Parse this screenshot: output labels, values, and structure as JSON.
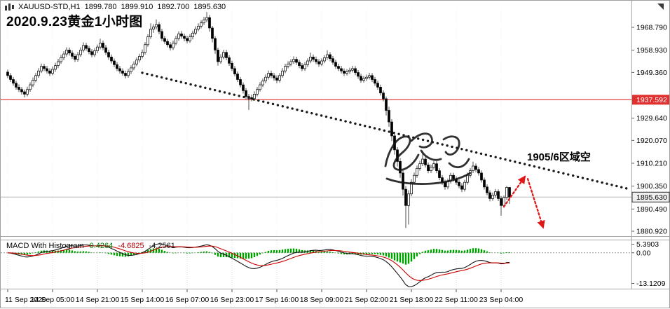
{
  "header": {
    "symbol_period": "XAUUSD-STD,H1",
    "quote": [
      "1899.780",
      "1899.910",
      "1892.700",
      "1895.630"
    ],
    "title": "2020.9.23黄金1小时图"
  },
  "price_axis": {
    "ticks": [
      {
        "label": "1968.790",
        "value": 1968.79
      },
      {
        "label": "1958.930",
        "value": 1958.93
      },
      {
        "label": "1949.360",
        "value": 1949.36
      },
      {
        "label": "1929.640",
        "value": 1929.64
      },
      {
        "label": "1920.070",
        "value": 1920.07
      },
      {
        "label": "1910.210",
        "value": 1910.21
      },
      {
        "label": "1900.350",
        "value": 1900.35
      },
      {
        "label": "1890.490",
        "value": 1890.49
      },
      {
        "label": "1880.920",
        "value": 1880.92
      }
    ],
    "red_level": {
      "label": "1937.592",
      "value": 1937.592
    },
    "current": {
      "label": "1895.630",
      "value": 1895.63
    }
  },
  "macd": {
    "name": "MACD With Histogram",
    "values": [
      {
        "text": "0.4264",
        "color": "#008000"
      },
      {
        "text": "-4.6825",
        "color": "#b00000"
      },
      {
        "text": "-4.2561",
        "color": "#1a1a1a"
      }
    ],
    "axis_labels": [
      "5.3903",
      "0.00",
      "-13.1209"
    ],
    "params": {
      "fast": 12,
      "slow": 26,
      "signal": 9
    }
  },
  "annotations": {
    "zone_short": {
      "text": "1905/6区域空"
    },
    "trendline": {
      "from": {
        "bar": 48,
        "price": 1949.2
      },
      "to": {
        "bar": 221,
        "price": 1899.3
      }
    },
    "arrow_up": {
      "from": {
        "bar": 177,
        "price": 1891.5
      },
      "to": {
        "bar": 184.5,
        "price": 1904.5
      }
    },
    "arrow_down": {
      "from": {
        "bar": 185.5,
        "price": 1903.5
      },
      "to": {
        "bar": 191,
        "price": 1882.5
      }
    }
  },
  "colors": {
    "bull": "#ffffff",
    "bear": "#000000",
    "wick": "#000000",
    "red_line": "#e03030",
    "current_line": "#b8b8b8",
    "trend": "#1a1a1a",
    "arrow": "#e01818",
    "hist": "#00a000",
    "macd_line": "#151515",
    "signal_line": "#cc0000",
    "grid": "#d8d8d8"
  },
  "chart_data": {
    "type": "candlestick",
    "symbol": "XAUUSD-STD",
    "timeframe": "H1",
    "title": "2020.9.23黄金1小时图",
    "y_axis_range": [
      1878.9,
      1977.8
    ],
    "levels": {
      "resistance_red_line": 1937.592,
      "current_bid": 1895.63,
      "short_zone": "1905/6"
    },
    "time_ticks": [
      {
        "label": "11 Sep 2020",
        "bar": 0
      },
      {
        "label": "14 Sep 05:00",
        "bar": 16
      },
      {
        "label": "14 Sep 21:00",
        "bar": 32
      },
      {
        "label": "15 Sep 14:00",
        "bar": 48
      },
      {
        "label": "16 Sep 07:00",
        "bar": 64
      },
      {
        "label": "16 Sep 23:00",
        "bar": 80
      },
      {
        "label": "17 Sep 16:00",
        "bar": 96
      },
      {
        "label": "18 Sep 09:00",
        "bar": 112
      },
      {
        "label": "21 Sep 02:00",
        "bar": 128
      },
      {
        "label": "21 Sep 18:00",
        "bar": 144
      },
      {
        "label": "22 Sep 11:00",
        "bar": 160
      },
      {
        "label": "23 Sep 04:00",
        "bar": 176
      }
    ],
    "ohlc": [
      [
        1949.5,
        1950.6,
        1946.9,
        1948.0
      ],
      [
        1948.0,
        1949.1,
        1945.2,
        1946.3
      ],
      [
        1946.3,
        1947.4,
        1943.6,
        1944.7
      ],
      [
        1944.7,
        1945.8,
        1941.9,
        1943.0
      ],
      [
        1943.0,
        1944.2,
        1940.9,
        1942.0
      ],
      [
        1942.0,
        1943.1,
        1939.8,
        1941.0
      ],
      [
        1941.0,
        1942.0,
        1938.6,
        1940.0
      ],
      [
        1940.0,
        1943.2,
        1939.0,
        1942.0
      ],
      [
        1942.0,
        1945.1,
        1941.0,
        1944.0
      ],
      [
        1944.0,
        1947.2,
        1943.0,
        1946.0
      ],
      [
        1946.0,
        1949.1,
        1945.1,
        1948.0
      ],
      [
        1948.0,
        1951.2,
        1947.0,
        1950.0
      ],
      [
        1950.0,
        1953.2,
        1949.1,
        1952.0
      ],
      [
        1952.0,
        1953.1,
        1949.9,
        1951.0
      ],
      [
        1951.0,
        1952.2,
        1948.9,
        1950.0
      ],
      [
        1950.0,
        1951.1,
        1947.8,
        1949.0
      ],
      [
        1949.0,
        1951.9,
        1948.1,
        1950.7
      ],
      [
        1950.7,
        1953.5,
        1949.6,
        1952.3
      ],
      [
        1952.3,
        1955.2,
        1951.2,
        1954.0
      ],
      [
        1954.0,
        1956.9,
        1953.0,
        1955.7
      ],
      [
        1955.7,
        1958.5,
        1954.6,
        1957.3
      ],
      [
        1957.3,
        1960.2,
        1956.2,
        1959.0
      ],
      [
        1959.0,
        1960.1,
        1956.6,
        1957.7
      ],
      [
        1957.7,
        1958.9,
        1955.2,
        1956.3
      ],
      [
        1956.3,
        1957.4,
        1953.9,
        1955.0
      ],
      [
        1955.0,
        1958.2,
        1954.0,
        1957.0
      ],
      [
        1957.0,
        1960.2,
        1956.1,
        1959.0
      ],
      [
        1959.0,
        1962.3,
        1958.0,
        1961.0
      ],
      [
        1961.0,
        1962.1,
        1958.7,
        1959.7
      ],
      [
        1959.7,
        1960.8,
        1957.2,
        1958.3
      ],
      [
        1958.3,
        1959.4,
        1955.9,
        1957.0
      ],
      [
        1957.0,
        1959.8,
        1956.0,
        1958.7
      ],
      [
        1958.7,
        1961.4,
        1957.6,
        1960.3
      ],
      [
        1960.3,
        1963.9,
        1959.3,
        1962.0
      ],
      [
        1962.0,
        1963.1,
        1958.9,
        1960.0
      ],
      [
        1960.0,
        1961.2,
        1956.9,
        1958.0
      ],
      [
        1958.0,
        1959.1,
        1954.8,
        1956.0
      ],
      [
        1956.0,
        1957.1,
        1953.2,
        1954.3
      ],
      [
        1954.3,
        1955.4,
        1951.6,
        1952.7
      ],
      [
        1952.7,
        1953.8,
        1949.9,
        1951.0
      ],
      [
        1951.0,
        1952.2,
        1948.9,
        1950.0
      ],
      [
        1950.0,
        1951.1,
        1947.9,
        1949.0
      ],
      [
        1949.0,
        1950.1,
        1946.8,
        1948.0
      ],
      [
        1948.0,
        1950.9,
        1947.1,
        1949.7
      ],
      [
        1949.7,
        1952.4,
        1948.6,
        1951.3
      ],
      [
        1951.3,
        1954.2,
        1950.3,
        1953.0
      ],
      [
        1953.0,
        1955.8,
        1952.0,
        1954.7
      ],
      [
        1954.7,
        1957.4,
        1953.6,
        1956.3
      ],
      [
        1956.3,
        1959.2,
        1955.3,
        1958.0
      ],
      [
        1958.0,
        1962.4,
        1957.1,
        1961.3
      ],
      [
        1961.3,
        1965.8,
        1960.4,
        1964.7
      ],
      [
        1964.7,
        1970.5,
        1963.8,
        1968.0
      ],
      [
        1968.0,
        1970.2,
        1966.4,
        1969.0
      ],
      [
        1969.0,
        1972.2,
        1967.9,
        1970.0
      ],
      [
        1970.0,
        1971.1,
        1965.8,
        1967.0
      ],
      [
        1967.0,
        1968.2,
        1962.9,
        1964.0
      ],
      [
        1964.0,
        1965.1,
        1961.6,
        1962.7
      ],
      [
        1962.7,
        1963.8,
        1960.2,
        1961.3
      ],
      [
        1961.3,
        1962.4,
        1958.8,
        1960.0
      ],
      [
        1960.0,
        1963.1,
        1959.0,
        1962.0
      ],
      [
        1962.0,
        1965.2,
        1961.1,
        1964.0
      ],
      [
        1964.0,
        1967.1,
        1963.0,
        1966.0
      ],
      [
        1966.0,
        1967.2,
        1963.9,
        1965.0
      ],
      [
        1965.0,
        1966.1,
        1962.8,
        1964.0
      ],
      [
        1964.0,
        1965.2,
        1961.9,
        1963.0
      ],
      [
        1963.0,
        1965.9,
        1962.1,
        1964.7
      ],
      [
        1964.7,
        1967.4,
        1963.6,
        1966.3
      ],
      [
        1966.3,
        1969.2,
        1965.4,
        1968.0
      ],
      [
        1968.0,
        1970.5,
        1967.1,
        1969.3
      ],
      [
        1969.3,
        1971.9,
        1968.3,
        1970.7
      ],
      [
        1970.7,
        1973.3,
        1969.8,
        1972.0
      ],
      [
        1972.0,
        1975.4,
        1971.0,
        1973.0
      ],
      [
        1973.0,
        1974.1,
        1966.9,
        1968.5
      ],
      [
        1968.5,
        1969.4,
        1962.3,
        1964.0
      ],
      [
        1964.0,
        1965.0,
        1957.4,
        1959.0
      ],
      [
        1959.0,
        1960.0,
        1952.3,
        1954.0
      ],
      [
        1954.0,
        1957.2,
        1953.1,
        1956.0
      ],
      [
        1956.0,
        1959.1,
        1955.0,
        1958.0
      ],
      [
        1958.0,
        1959.1,
        1954.6,
        1955.7
      ],
      [
        1955.7,
        1956.8,
        1952.2,
        1953.3
      ],
      [
        1953.3,
        1954.4,
        1949.9,
        1951.0
      ],
      [
        1951.0,
        1952.1,
        1947.6,
        1948.7
      ],
      [
        1948.7,
        1949.8,
        1945.2,
        1946.3
      ],
      [
        1946.3,
        1947.4,
        1942.9,
        1944.0
      ],
      [
        1944.0,
        1945.1,
        1940.3,
        1941.5
      ],
      [
        1941.5,
        1942.6,
        1937.8,
        1939.0
      ],
      [
        1939.0,
        1940.1,
        1933.2,
        1938.5
      ],
      [
        1938.5,
        1939.8,
        1936.9,
        1938.0
      ],
      [
        1938.0,
        1941.2,
        1937.1,
        1940.0
      ],
      [
        1940.0,
        1943.1,
        1939.0,
        1942.0
      ],
      [
        1942.0,
        1945.2,
        1941.1,
        1944.0
      ],
      [
        1944.0,
        1946.8,
        1943.0,
        1945.7
      ],
      [
        1945.7,
        1948.5,
        1944.7,
        1947.3
      ],
      [
        1947.3,
        1950.2,
        1946.3,
        1949.0
      ],
      [
        1949.0,
        1950.1,
        1946.9,
        1948.0
      ],
      [
        1948.0,
        1949.2,
        1945.8,
        1947.0
      ],
      [
        1947.0,
        1948.1,
        1944.7,
        1946.0
      ],
      [
        1946.0,
        1949.1,
        1945.0,
        1948.0
      ],
      [
        1948.0,
        1951.2,
        1947.1,
        1950.0
      ],
      [
        1950.0,
        1953.1,
        1949.0,
        1952.0
      ],
      [
        1952.0,
        1954.2,
        1951.1,
        1953.0
      ],
      [
        1953.0,
        1955.1,
        1952.0,
        1954.0
      ],
      [
        1954.0,
        1956.3,
        1953.1,
        1955.0
      ],
      [
        1955.0,
        1956.1,
        1952.6,
        1953.7
      ],
      [
        1953.7,
        1954.8,
        1951.2,
        1952.3
      ],
      [
        1952.3,
        1953.4,
        1949.9,
        1951.0
      ],
      [
        1951.0,
        1953.8,
        1950.0,
        1952.7
      ],
      [
        1952.7,
        1955.4,
        1951.7,
        1954.3
      ],
      [
        1954.3,
        1957.9,
        1953.3,
        1956.0
      ],
      [
        1956.0,
        1957.1,
        1953.9,
        1955.0
      ],
      [
        1955.0,
        1956.2,
        1952.9,
        1954.0
      ],
      [
        1954.0,
        1955.1,
        1951.8,
        1953.0
      ],
      [
        1953.0,
        1955.4,
        1952.1,
        1954.3
      ],
      [
        1954.3,
        1956.8,
        1953.3,
        1955.7
      ],
      [
        1955.7,
        1958.9,
        1954.7,
        1957.0
      ],
      [
        1957.0,
        1958.1,
        1954.2,
        1955.3
      ],
      [
        1955.3,
        1956.4,
        1952.6,
        1953.7
      ],
      [
        1953.7,
        1954.8,
        1950.9,
        1952.0
      ],
      [
        1952.0,
        1953.1,
        1949.9,
        1951.0
      ],
      [
        1951.0,
        1952.2,
        1948.9,
        1950.0
      ],
      [
        1950.0,
        1951.1,
        1947.8,
        1949.0
      ],
      [
        1949.0,
        1950.8,
        1948.0,
        1949.7
      ],
      [
        1949.7,
        1951.4,
        1948.7,
        1950.3
      ],
      [
        1950.3,
        1952.2,
        1949.3,
        1951.0
      ],
      [
        1951.0,
        1952.1,
        1948.2,
        1949.3
      ],
      [
        1949.3,
        1950.4,
        1946.6,
        1947.7
      ],
      [
        1947.7,
        1948.8,
        1944.9,
        1946.0
      ],
      [
        1946.0,
        1947.8,
        1945.0,
        1946.7
      ],
      [
        1946.7,
        1948.4,
        1945.7,
        1947.3
      ],
      [
        1947.3,
        1949.2,
        1946.3,
        1948.0
      ],
      [
        1948.0,
        1949.1,
        1945.2,
        1946.3
      ],
      [
        1946.3,
        1947.4,
        1943.6,
        1944.7
      ],
      [
        1944.7,
        1945.8,
        1941.9,
        1943.0
      ],
      [
        1943.0,
        1944.1,
        1939.4,
        1940.5
      ],
      [
        1940.5,
        1941.6,
        1936.9,
        1938.0
      ],
      [
        1938.0,
        1939.0,
        1930.8,
        1933.0
      ],
      [
        1933.0,
        1934.6,
        1925.9,
        1928.0
      ],
      [
        1928.0,
        1929.2,
        1919.8,
        1922.0
      ],
      [
        1922.0,
        1923.4,
        1913.9,
        1916.0
      ],
      [
        1916.0,
        1917.2,
        1908.8,
        1911.0
      ],
      [
        1911.0,
        1912.4,
        1903.9,
        1906.0
      ],
      [
        1906.0,
        1907.2,
        1896.3,
        1899.0
      ],
      [
        1899.0,
        1900.4,
        1882.3,
        1892.0
      ],
      [
        1892.0,
        1898.6,
        1883.8,
        1897.0
      ],
      [
        1897.0,
        1903.3,
        1896.0,
        1902.0
      ],
      [
        1902.0,
        1906.2,
        1901.0,
        1905.0
      ],
      [
        1905.0,
        1909.2,
        1904.0,
        1908.0
      ],
      [
        1908.0,
        1911.3,
        1907.0,
        1910.0
      ],
      [
        1910.0,
        1915.6,
        1909.0,
        1912.0
      ],
      [
        1912.0,
        1913.1,
        1908.4,
        1909.5
      ],
      [
        1909.5,
        1910.6,
        1905.9,
        1907.0
      ],
      [
        1907.0,
        1909.6,
        1906.0,
        1908.5
      ],
      [
        1908.5,
        1911.2,
        1907.5,
        1910.0
      ],
      [
        1910.0,
        1911.1,
        1905.9,
        1907.0
      ],
      [
        1907.0,
        1908.1,
        1902.9,
        1904.0
      ],
      [
        1904.0,
        1905.1,
        1900.9,
        1902.0
      ],
      [
        1902.0,
        1903.1,
        1898.8,
        1900.0
      ],
      [
        1900.0,
        1903.6,
        1899.0,
        1902.5
      ],
      [
        1902.5,
        1906.1,
        1901.5,
        1905.0
      ],
      [
        1905.0,
        1906.1,
        1902.4,
        1903.5
      ],
      [
        1903.5,
        1904.6,
        1900.9,
        1902.0
      ],
      [
        1902.0,
        1903.1,
        1899.4,
        1900.5
      ],
      [
        1900.5,
        1901.6,
        1897.8,
        1899.0
      ],
      [
        1899.0,
        1903.1,
        1898.0,
        1902.0
      ],
      [
        1902.0,
        1906.2,
        1901.0,
        1905.0
      ],
      [
        1905.0,
        1908.1,
        1904.0,
        1907.0
      ],
      [
        1907.0,
        1910.9,
        1906.0,
        1909.0
      ],
      [
        1909.0,
        1910.1,
        1906.4,
        1907.5
      ],
      [
        1907.5,
        1908.6,
        1904.9,
        1906.0
      ],
      [
        1906.0,
        1907.1,
        1901.9,
        1903.0
      ],
      [
        1903.0,
        1904.1,
        1898.9,
        1900.0
      ],
      [
        1900.0,
        1901.1,
        1896.4,
        1897.5
      ],
      [
        1897.5,
        1898.6,
        1893.8,
        1895.0
      ],
      [
        1895.0,
        1897.6,
        1894.0,
        1896.5
      ],
      [
        1896.5,
        1899.1,
        1895.5,
        1898.0
      ],
      [
        1898.0,
        1899.0,
        1893.9,
        1895.0
      ],
      [
        1895.0,
        1896.1,
        1887.6,
        1892.0
      ],
      [
        1892.0,
        1896.3,
        1891.0,
        1895.5
      ],
      [
        1895.5,
        1900.4,
        1894.5,
        1899.8
      ],
      [
        1899.8,
        1899.9,
        1892.7,
        1895.6
      ]
    ]
  },
  "watermark": {
    "kind": "handwritten-signature"
  }
}
